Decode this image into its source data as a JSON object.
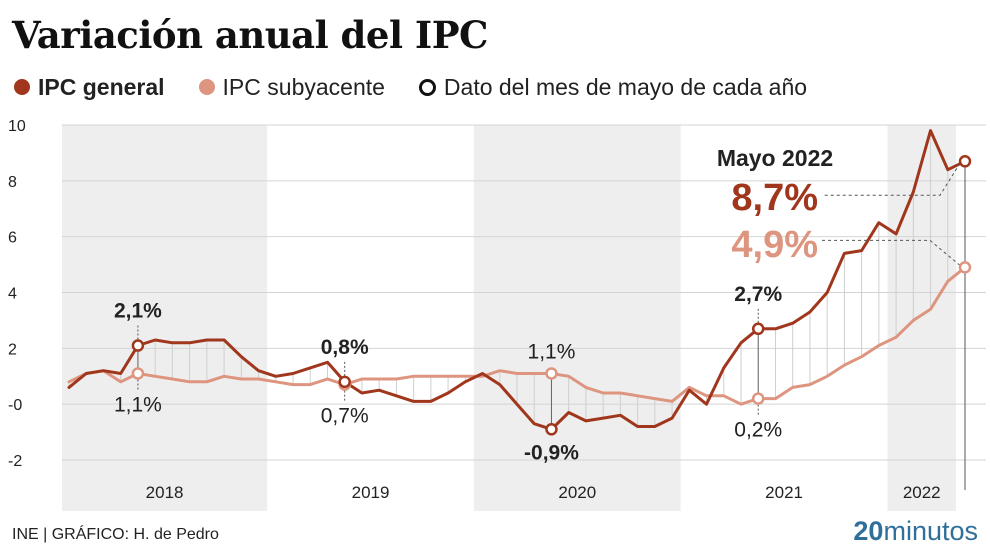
{
  "title": "Variación anual del IPC",
  "legend": {
    "general": "IPC general",
    "core": "IPC subyacente",
    "may": "Dato del mes de mayo de cada año"
  },
  "colors": {
    "general": "#a0361c",
    "core": "#dd9580",
    "band": "#eeeeee",
    "grid": "#d4d4d4"
  },
  "source": "INE  |  GRÁFICO: H. de Pedro",
  "brand": {
    "number": "20",
    "word": "minutos"
  },
  "chart_data": {
    "type": "line",
    "title": "Variación anual del IPC",
    "xlabel": "",
    "ylabel": "",
    "ylim": [
      -2,
      10
    ],
    "yticks": [
      {
        "value": 10,
        "label": "10"
      },
      {
        "value": 8,
        "label": "8"
      },
      {
        "value": 6,
        "label": "6"
      },
      {
        "value": 4,
        "label": "4"
      },
      {
        "value": 2,
        "label": "2"
      },
      {
        "value": 0,
        "label": "-0"
      },
      {
        "value": -2,
        "label": "-2"
      }
    ],
    "years": [
      {
        "label": "2018",
        "shaded": true
      },
      {
        "label": "2019",
        "shaded": false
      },
      {
        "label": "2020",
        "shaded": true
      },
      {
        "label": "2021",
        "shaded": false
      },
      {
        "label": "2022",
        "shaded": true
      }
    ],
    "x": [
      "2018-01",
      "2018-02",
      "2018-03",
      "2018-04",
      "2018-05",
      "2018-06",
      "2018-07",
      "2018-08",
      "2018-09",
      "2018-10",
      "2018-11",
      "2018-12",
      "2019-01",
      "2019-02",
      "2019-03",
      "2019-04",
      "2019-05",
      "2019-06",
      "2019-07",
      "2019-08",
      "2019-09",
      "2019-10",
      "2019-11",
      "2019-12",
      "2020-01",
      "2020-02",
      "2020-03",
      "2020-04",
      "2020-05",
      "2020-06",
      "2020-07",
      "2020-08",
      "2020-09",
      "2020-10",
      "2020-11",
      "2020-12",
      "2021-01",
      "2021-02",
      "2021-03",
      "2021-04",
      "2021-05",
      "2021-06",
      "2021-07",
      "2021-08",
      "2021-09",
      "2021-10",
      "2021-11",
      "2021-12",
      "2022-01",
      "2022-02",
      "2022-03",
      "2022-04",
      "2022-05"
    ],
    "series": [
      {
        "name": "IPC general",
        "color": "#a0361c",
        "values": [
          0.6,
          1.1,
          1.2,
          1.1,
          2.1,
          2.3,
          2.2,
          2.2,
          2.3,
          2.3,
          1.7,
          1.2,
          1.0,
          1.1,
          1.3,
          1.5,
          0.8,
          0.4,
          0.5,
          0.3,
          0.1,
          0.1,
          0.4,
          0.8,
          1.1,
          0.7,
          0.0,
          -0.7,
          -0.9,
          -0.3,
          -0.6,
          -0.5,
          -0.4,
          -0.8,
          -0.8,
          -0.5,
          0.5,
          0.0,
          1.3,
          2.2,
          2.7,
          2.7,
          2.9,
          3.3,
          4.0,
          5.4,
          5.5,
          6.5,
          6.1,
          7.6,
          9.8,
          8.4,
          8.7
        ]
      },
      {
        "name": "IPC subyacente",
        "color": "#dd9580",
        "values": [
          0.8,
          1.1,
          1.2,
          0.8,
          1.1,
          1.0,
          0.9,
          0.8,
          0.8,
          1.0,
          0.9,
          0.9,
          0.8,
          0.7,
          0.7,
          0.9,
          0.7,
          0.9,
          0.9,
          0.9,
          1.0,
          1.0,
          1.0,
          1.0,
          1.0,
          1.2,
          1.1,
          1.1,
          1.1,
          1.0,
          0.6,
          0.4,
          0.4,
          0.3,
          0.2,
          0.1,
          0.6,
          0.3,
          0.3,
          0.0,
          0.2,
          0.2,
          0.6,
          0.7,
          1.0,
          1.4,
          1.7,
          2.1,
          2.4,
          3.0,
          3.4,
          4.4,
          4.9
        ]
      }
    ],
    "may_points": [
      {
        "month": "2018-05",
        "general": 2.1,
        "core": 1.1,
        "general_label": "2,1%",
        "core_label": "1,1%",
        "general_pos": "above",
        "core_pos": "below"
      },
      {
        "month": "2019-05",
        "general": 0.8,
        "core": 0.7,
        "general_label": "0,8%",
        "core_label": "0,7%",
        "general_pos": "above",
        "core_pos": "below"
      },
      {
        "month": "2020-05",
        "general": -0.9,
        "core": 1.1,
        "general_label": "-0,9%",
        "core_label": "1,1%",
        "general_pos": "below",
        "core_pos": "above"
      },
      {
        "month": "2021-05",
        "general": 2.7,
        "core": 0.2,
        "general_label": "2,7%",
        "core_label": "0,2%",
        "general_pos": "above",
        "core_pos": "below"
      }
    ],
    "callout": {
      "heading": "Mayo 2022",
      "general_label": "8,7%",
      "core_label": "4,9%",
      "general": 8.7,
      "core": 4.9
    }
  }
}
